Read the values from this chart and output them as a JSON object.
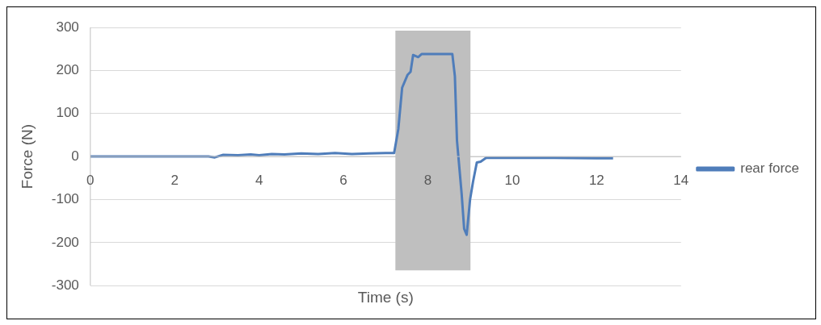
{
  "chart_data": {
    "type": "line",
    "xlabel": "Time (s)",
    "ylabel": "Force (N)",
    "xlim": [
      0,
      14
    ],
    "xticks": [
      0,
      2,
      4,
      6,
      8,
      10,
      12,
      14
    ],
    "ylim": [
      -300,
      300
    ],
    "yticks": [
      -300,
      -200,
      -100,
      0,
      100,
      200,
      300
    ],
    "grid": "y",
    "legend": "right",
    "marker": "none",
    "bands": [
      {
        "axis": "x",
        "from": 7.23,
        "to": 9.01,
        "color": "#bfbfbf"
      }
    ],
    "series": [
      {
        "name": "rear force",
        "color": "#4f7dba",
        "x": [
          0,
          1,
          2,
          2.8,
          2.95,
          3.15,
          3.5,
          3.8,
          4.0,
          4.3,
          4.6,
          5.0,
          5.4,
          5.8,
          6.2,
          6.6,
          7.0,
          7.15,
          7.2,
          7.3,
          7.39,
          7.52,
          7.59,
          7.65,
          7.77,
          7.85,
          8.2,
          8.58,
          8.64,
          8.69,
          8.8,
          8.86,
          8.92,
          9.0,
          9.07,
          9.16,
          9.25,
          9.38,
          10,
          11,
          12,
          12.39
        ],
        "values": [
          0,
          0,
          0,
          0,
          -2,
          4,
          3,
          5,
          3,
          6,
          5,
          7,
          6,
          8,
          6,
          7,
          8,
          8,
          8,
          64,
          160,
          190,
          197,
          236,
          231,
          238,
          238,
          238,
          187,
          37,
          -86,
          -168,
          -182,
          -100,
          -59,
          -14,
          -12,
          -3,
          -3,
          -3,
          -4,
          -4
        ]
      }
    ]
  }
}
